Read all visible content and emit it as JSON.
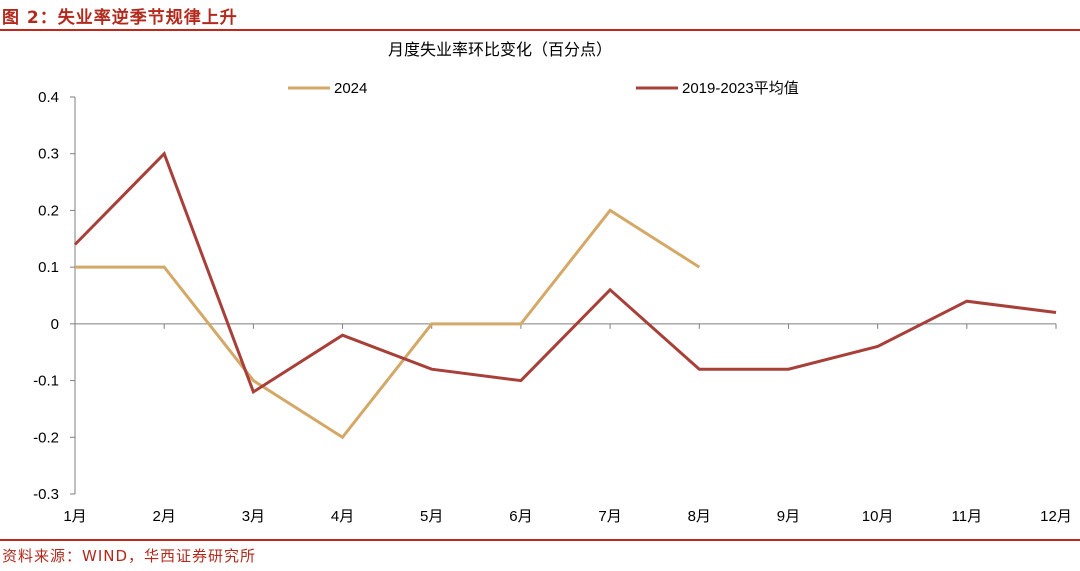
{
  "figure": {
    "caption": "图 2：失业率逆季节规律上升",
    "source": "资料来源：WIND，华西证券研究所"
  },
  "colors": {
    "accent": "#c0281c",
    "series_2024": "#d4a867",
    "series_avg": "#a8403a"
  },
  "chart_data": {
    "type": "line",
    "title": "月度失业率环比变化（百分点）",
    "xlabel": "",
    "ylabel": "",
    "categories": [
      "1月",
      "2月",
      "3月",
      "4月",
      "5月",
      "6月",
      "7月",
      "8月",
      "9月",
      "10月",
      "11月",
      "12月"
    ],
    "ylim": [
      -0.3,
      0.4
    ],
    "yticks": [
      0.4,
      0.3,
      0.2,
      0.1,
      0,
      -0.1,
      -0.2,
      -0.3
    ],
    "ytick_labels": [
      "0.4",
      "0.3",
      "0.2",
      "0.1",
      "0",
      "-0.1",
      "-0.2",
      "-0.3"
    ],
    "grid": false,
    "legend_position": "top",
    "series": [
      {
        "name": "2024",
        "color": "#d4a867",
        "values": [
          0.1,
          0.1,
          -0.1,
          -0.2,
          0,
          0,
          0.2,
          0.1,
          null,
          null,
          null,
          null
        ]
      },
      {
        "name": "2019-2023平均值",
        "color": "#a8403a",
        "values": [
          0.14,
          0.3,
          -0.12,
          -0.02,
          -0.08,
          -0.1,
          0.06,
          -0.08,
          -0.08,
          -0.04,
          0.04,
          0.02
        ]
      }
    ]
  }
}
